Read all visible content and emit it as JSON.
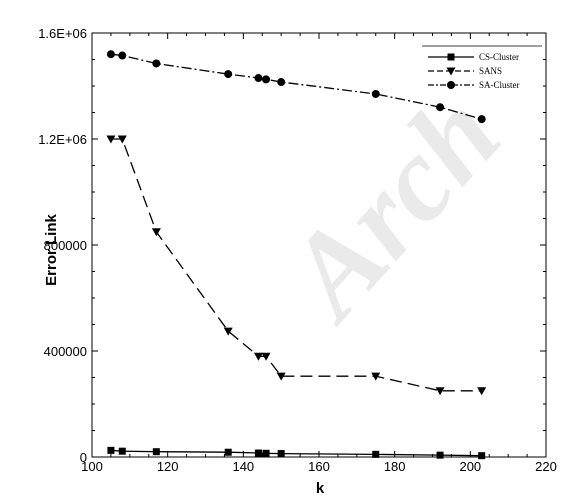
{
  "chart_data": {
    "type": "line",
    "title": "",
    "xlabel": "k",
    "ylabel": "Error Link",
    "xlim": [
      100,
      220
    ],
    "ylim": [
      0,
      1600000
    ],
    "x_ticks": [
      100,
      120,
      140,
      160,
      180,
      200,
      220
    ],
    "x_tick_labels": [
      "100",
      "120",
      "140",
      "160",
      "180",
      "200",
      "220"
    ],
    "y_ticks": [
      0,
      400000,
      800000,
      1200000,
      1600000
    ],
    "y_tick_labels": [
      "0",
      "400000",
      "800000",
      "1.2E+06",
      "1.6E+06"
    ],
    "grid": false,
    "legend_position": "top-right",
    "series": [
      {
        "name": "CS-Cluster",
        "line_style": "solid",
        "marker": "square",
        "x": [
          105,
          108,
          117,
          136,
          144,
          146,
          150,
          175,
          192,
          203
        ],
        "y": [
          25000,
          22000,
          20000,
          18000,
          15000,
          14000,
          13000,
          10000,
          7000,
          5000
        ]
      },
      {
        "name": "SANS",
        "line_style": "dashed",
        "marker": "triangle-down",
        "x": [
          105,
          108,
          117,
          136,
          144,
          146,
          150,
          175,
          192,
          203
        ],
        "y": [
          1200000,
          1200000,
          850000,
          475000,
          380000,
          380000,
          305000,
          305000,
          250000,
          250000
        ]
      },
      {
        "name": "SA-Cluster",
        "line_style": "dash-dot",
        "marker": "circle",
        "x": [
          105,
          108,
          117,
          136,
          144,
          146,
          150,
          175,
          192,
          203
        ],
        "y": [
          1520000,
          1515000,
          1485000,
          1445000,
          1430000,
          1425000,
          1415000,
          1370000,
          1320000,
          1275000
        ]
      }
    ]
  },
  "watermark": {
    "text": "Arch"
  },
  "colors": {
    "background": "#ffffff",
    "axis": "#000000",
    "series": "#000000",
    "watermark": "#d9d9d9"
  }
}
